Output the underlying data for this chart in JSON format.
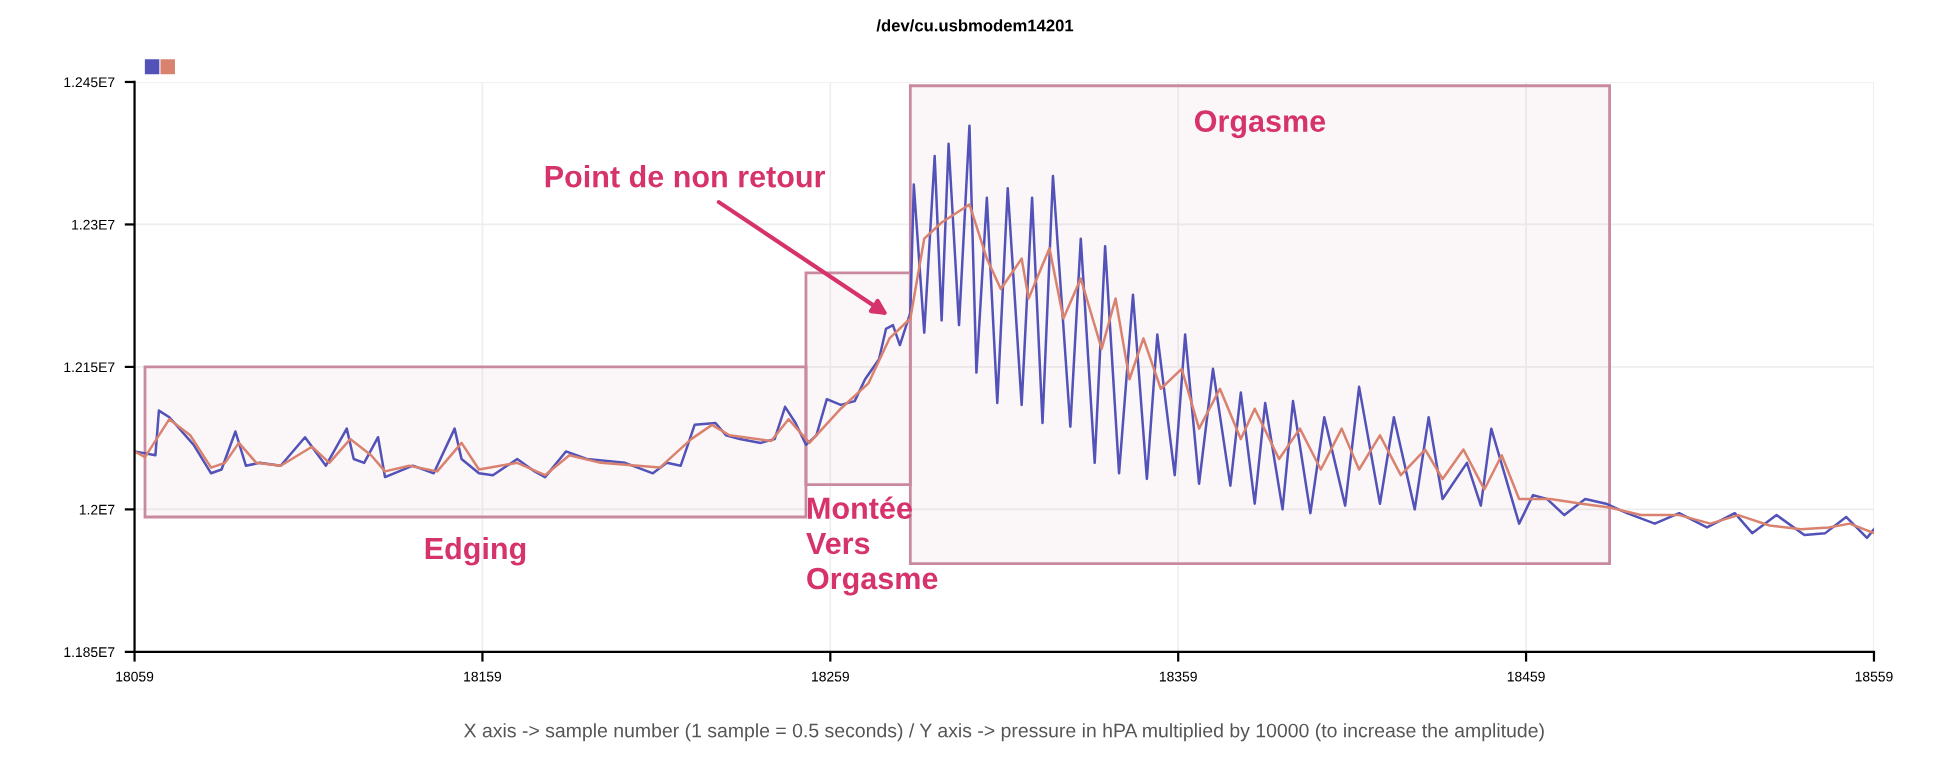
{
  "chart_data": {
    "type": "line",
    "title": "/dev/cu.usbmodem14201",
    "xlabel": "X axis -> sample number (1 sample = 0.5 seconds) / Y axis -> pressure in hPA multiplied by 10000 (to increase the amplitude)",
    "series": [
      {
        "color": "#5252b8",
        "x": [
          18059,
          18065,
          18066,
          18069,
          18076,
          18081,
          18084,
          18088,
          18091,
          18095,
          18101,
          18108,
          18114,
          18120,
          18122,
          18125,
          18129,
          18131,
          18139,
          18145,
          18151,
          18153,
          18158,
          18162,
          18169,
          18174,
          18177,
          18183,
          18189,
          18200,
          18208,
          18212,
          18216,
          18220,
          18226,
          18229,
          18233,
          18239,
          18243,
          18246,
          18249,
          18252,
          18255,
          18258,
          18262,
          18266,
          18269,
          18273,
          18275,
          18277,
          18279,
          18282,
          18283,
          18286,
          18289,
          18291,
          18293,
          18296,
          18299,
          18301,
          18304,
          18307,
          18310,
          18314,
          18317,
          18320,
          18323,
          18328,
          18331,
          18335,
          18338,
          18342,
          18346,
          18350,
          18353,
          18358,
          18361,
          18365,
          18369,
          18374,
          18377,
          18381,
          18384,
          18389,
          18392,
          18397,
          18401,
          18407,
          18411,
          18417,
          18421,
          18427,
          18431,
          18435,
          18442,
          18446,
          18449,
          18457,
          18461,
          18465,
          18470,
          18476,
          18482,
          18488,
          18496,
          18503,
          18511,
          18519,
          18524,
          18531,
          18539,
          18545,
          18551,
          18557,
          18559
        ],
        "values": [
          12061000,
          12057000,
          12104000,
          12097000,
          12068000,
          12038000,
          12042000,
          12082000,
          12046000,
          12049000,
          12046000,
          12076000,
          12046000,
          12085000,
          12053000,
          12049000,
          12076000,
          12034000,
          12046000,
          12038000,
          12085000,
          12053000,
          12038000,
          12036000,
          12053000,
          12040000,
          12034000,
          12061000,
          12053000,
          12049000,
          12038000,
          12049000,
          12046000,
          12089000,
          12091000,
          12078000,
          12074000,
          12070000,
          12074000,
          12108000,
          12091000,
          12068000,
          12078000,
          12116000,
          12110000,
          12114000,
          12137000,
          12158000,
          12190000,
          12194000,
          12173000,
          12207000,
          12342000,
          12186000,
          12372000,
          12199000,
          12385000,
          12194000,
          12404000,
          12144000,
          12328000,
          12112000,
          12338000,
          12110000,
          12328000,
          12091000,
          12351000,
          12087000,
          12285000,
          12049000,
          12277000,
          12038000,
          12226000,
          12032000,
          12184000,
          12036000,
          12184000,
          12027000,
          12148000,
          12025000,
          12123000,
          12006000,
          12112000,
          12000000,
          12114000,
          11996000,
          12097000,
          12004000,
          12129000,
          12006000,
          12097000,
          12000000,
          12097000,
          12011000,
          12049000,
          12004000,
          12085000,
          11985000,
          12015000,
          12011000,
          11994000,
          12011000,
          12006000,
          11996000,
          11985000,
          11996000,
          11981000,
          11996000,
          11975000,
          11994000,
          11973000,
          11975000,
          11992000,
          11970000,
          11979000
        ]
      },
      {
        "color": "#d9826f",
        "x": [
          18059,
          18062,
          18069,
          18075,
          18081,
          18085,
          18089,
          18094,
          18101,
          18110,
          18115,
          18121,
          18127,
          18131,
          18138,
          18146,
          18153,
          18158,
          18169,
          18177,
          18184,
          18193,
          18210,
          18219,
          18225,
          18230,
          18242,
          18247,
          18253,
          18262,
          18270,
          18276,
          18282,
          18286,
          18291,
          18299,
          18304,
          18308,
          18314,
          18316,
          18322,
          18326,
          18331,
          18337,
          18341,
          18345,
          18349,
          18354,
          18360,
          18365,
          18371,
          18377,
          18381,
          18388,
          18394,
          18400,
          18406,
          18411,
          18417,
          18423,
          18430,
          18435,
          18441,
          18447,
          18452,
          18457,
          18466,
          18475,
          18483,
          18492,
          18503,
          18512,
          18520,
          18529,
          18538,
          18546,
          18552,
          18559
        ],
        "values": [
          12061000,
          12055000,
          12095000,
          12078000,
          12044000,
          12049000,
          12070000,
          12049000,
          12046000,
          12066000,
          12049000,
          12074000,
          12057000,
          12040000,
          12046000,
          12040000,
          12070000,
          12042000,
          12049000,
          12036000,
          12057000,
          12049000,
          12044000,
          12074000,
          12089000,
          12078000,
          12072000,
          12095000,
          12070000,
          12106000,
          12133000,
          12180000,
          12201000,
          12285000,
          12302000,
          12321000,
          12264000,
          12232000,
          12264000,
          12222000,
          12275000,
          12201000,
          12243000,
          12169000,
          12222000,
          12137000,
          12180000,
          12127000,
          12148000,
          12085000,
          12127000,
          12074000,
          12106000,
          12053000,
          12085000,
          12042000,
          12085000,
          12042000,
          12078000,
          12036000,
          12063000,
          12032000,
          12063000,
          12021000,
          12057000,
          12011000,
          12011000,
          12006000,
          12002000,
          11994000,
          11994000,
          11985000,
          11994000,
          11983000,
          11979000,
          11981000,
          11985000,
          11975000
        ]
      }
    ],
    "xlim": [
      18059,
      18559
    ],
    "xticks": [
      18059,
      18159,
      18259,
      18359,
      18459,
      18559
    ],
    "ylim": [
      11850000,
      12450000
    ],
    "yticks": [
      {
        "value": 11850000,
        "label": "1.185E7"
      },
      {
        "value": 12000000,
        "label": "1.2E7"
      },
      {
        "value": 12150000,
        "label": "1.215E7"
      },
      {
        "value": 12300000,
        "label": "1.23E7"
      },
      {
        "value": 12450000,
        "label": "1.245E7"
      }
    ],
    "grid": true,
    "bands": [
      {
        "axis": "x",
        "from": 18062,
        "to": 18252,
        "label": "Edging",
        "color": "#c98aa0"
      },
      {
        "axis": "x",
        "from": 18252,
        "to": 18282,
        "label": "Montée\nVers\nOrgasme",
        "color": "#c98aa0"
      },
      {
        "axis": "x",
        "from": 18282,
        "to": 18483,
        "label": "Orgasme",
        "color": "#c98aa0"
      }
    ],
    "annotations": [
      {
        "text": "Point de non retour",
        "x": 18277,
        "y": 12201000
      }
    ]
  }
}
